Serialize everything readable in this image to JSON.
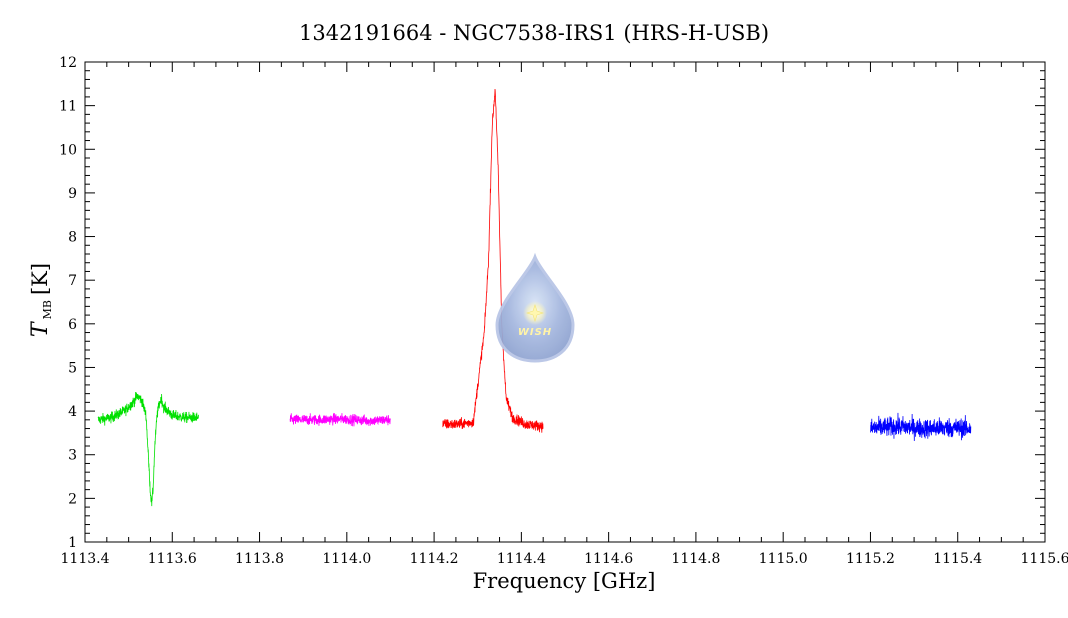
{
  "chart_data": {
    "type": "line",
    "title": "1342191664 - NGC7538-IRS1 (HRS-H-USB)",
    "xlabel": "Frequency [GHz]",
    "ylabel": {
      "symbol": "T",
      "subscript": "MB",
      "unit": "[K]"
    },
    "xlim": [
      1113.4,
      1115.6
    ],
    "ylim": [
      1,
      12
    ],
    "xticks": [
      "1113.4",
      "1113.6",
      "1113.8",
      "1114.0",
      "1114.2",
      "1114.4",
      "1114.6",
      "1114.8",
      "1115.0",
      "1115.2",
      "1115.4",
      "1115.6"
    ],
    "yticks": [
      "1",
      "2",
      "3",
      "4",
      "5",
      "6",
      "7",
      "8",
      "9",
      "10",
      "11",
      "12"
    ],
    "grid": false,
    "series": [
      {
        "color": "#00e000",
        "x": [
          1113.43,
          1113.46,
          1113.49,
          1113.51,
          1113.52,
          1113.53,
          1113.54,
          1113.545,
          1113.55,
          1113.553,
          1113.556,
          1113.56,
          1113.565,
          1113.57,
          1113.575,
          1113.58,
          1113.6,
          1113.63,
          1113.66
        ],
        "y": [
          3.8,
          3.85,
          4.0,
          4.2,
          4.35,
          4.25,
          3.9,
          3.0,
          2.1,
          1.9,
          2.2,
          3.2,
          3.9,
          4.15,
          4.3,
          4.1,
          3.9,
          3.85,
          3.85
        ],
        "noise": 0.12
      },
      {
        "color": "#ff00ff",
        "x": [
          1113.87,
          1113.93,
          1113.99,
          1114.05,
          1114.1
        ],
        "y": [
          3.8,
          3.8,
          3.82,
          3.78,
          3.8
        ],
        "noise": 0.12
      },
      {
        "color": "#ff0000",
        "x": [
          1114.22,
          1114.26,
          1114.29,
          1114.305,
          1114.315,
          1114.325,
          1114.333,
          1114.34,
          1114.347,
          1114.355,
          1114.365,
          1114.38,
          1114.41,
          1114.45
        ],
        "y": [
          3.7,
          3.7,
          3.75,
          5.0,
          5.8,
          7.5,
          10.5,
          11.4,
          9.5,
          6.0,
          4.3,
          3.85,
          3.7,
          3.65
        ],
        "noise": 0.12
      },
      {
        "color": "#0000ff",
        "x": [
          1115.2,
          1115.26,
          1115.32,
          1115.38,
          1115.43
        ],
        "y": [
          3.6,
          3.65,
          3.6,
          3.62,
          3.6
        ],
        "noise": 0.22
      }
    ]
  },
  "logo": {
    "text": "WISH"
  }
}
